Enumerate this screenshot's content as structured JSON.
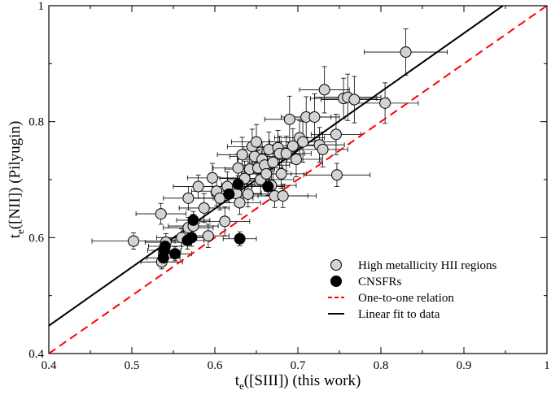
{
  "chart_data": {
    "type": "scatter",
    "title": "",
    "xlabel": {
      "prefix": "t",
      "sub": "e",
      "rest": "([SIII]) (this work)"
    },
    "ylabel": {
      "prefix": "t",
      "sub": "e",
      "rest": "([NII]) (Pilyugin)"
    },
    "xlim": [
      0.4,
      1.0
    ],
    "ylim": [
      0.4,
      1.0
    ],
    "x_ticks": [
      0.4,
      0.5,
      0.6,
      0.7,
      0.8,
      0.9,
      1.0
    ],
    "x_tick_labels": [
      "0.4",
      "0.5",
      "0.6",
      "0.7",
      "0.8",
      "0.9",
      "1"
    ],
    "y_ticks": [
      0.4,
      0.6,
      0.8,
      1.0
    ],
    "y_tick_labels": [
      "0.4",
      "0.6",
      "0.8",
      "1"
    ],
    "grid": false,
    "legend_position": "bottom-right",
    "series": [
      {
        "name": "High metallicity HII regions",
        "marker": "circle",
        "color": "#d3d3d3",
        "points": [
          [
            0.502,
            0.594,
            0.05,
            0.014
          ],
          [
            0.535,
            0.641,
            0.03,
            0.018
          ],
          [
            0.536,
            0.558,
            0.025,
            0.012
          ],
          [
            0.541,
            0.592,
            0.025,
            0.015
          ],
          [
            0.56,
            0.6,
            0.03,
            0.015
          ],
          [
            0.568,
            0.617,
            0.03,
            0.018
          ],
          [
            0.568,
            0.668,
            0.03,
            0.02
          ],
          [
            0.574,
            0.62,
            0.03,
            0.02
          ],
          [
            0.58,
            0.688,
            0.03,
            0.02
          ],
          [
            0.587,
            0.651,
            0.03,
            0.025
          ],
          [
            0.592,
            0.603,
            0.025,
            0.02
          ],
          [
            0.597,
            0.703,
            0.03,
            0.025
          ],
          [
            0.602,
            0.68,
            0.03,
            0.025
          ],
          [
            0.606,
            0.668,
            0.04,
            0.02
          ],
          [
            0.612,
            0.628,
            0.03,
            0.025
          ],
          [
            0.615,
            0.688,
            0.03,
            0.025
          ],
          [
            0.626,
            0.676,
            0.03,
            0.02
          ],
          [
            0.628,
            0.72,
            0.03,
            0.025
          ],
          [
            0.63,
            0.66,
            0.025,
            0.02
          ],
          [
            0.633,
            0.743,
            0.03,
            0.03
          ],
          [
            0.636,
            0.702,
            0.03,
            0.03
          ],
          [
            0.64,
            0.675,
            0.04,
            0.022
          ],
          [
            0.642,
            0.718,
            0.03,
            0.02
          ],
          [
            0.645,
            0.757,
            0.03,
            0.03
          ],
          [
            0.648,
            0.74,
            0.03,
            0.03
          ],
          [
            0.65,
            0.765,
            0.03,
            0.03
          ],
          [
            0.652,
            0.72,
            0.03,
            0.03
          ],
          [
            0.655,
            0.7,
            0.04,
            0.025
          ],
          [
            0.657,
            0.735,
            0.03,
            0.03
          ],
          [
            0.66,
            0.725,
            0.03,
            0.03
          ],
          [
            0.662,
            0.71,
            0.03,
            0.03
          ],
          [
            0.665,
            0.752,
            0.03,
            0.03
          ],
          [
            0.668,
            0.69,
            0.03,
            0.025
          ],
          [
            0.67,
            0.73,
            0.03,
            0.03
          ],
          [
            0.672,
            0.672,
            0.05,
            0.02
          ],
          [
            0.676,
            0.755,
            0.03,
            0.03
          ],
          [
            0.678,
            0.745,
            0.03,
            0.03
          ],
          [
            0.68,
            0.71,
            0.03,
            0.025
          ],
          [
            0.682,
            0.672,
            0.03,
            0.02
          ],
          [
            0.686,
            0.745,
            0.03,
            0.03
          ],
          [
            0.69,
            0.804,
            0.03,
            0.04
          ],
          [
            0.694,
            0.758,
            0.03,
            0.03
          ],
          [
            0.698,
            0.735,
            0.03,
            0.03
          ],
          [
            0.702,
            0.772,
            0.03,
            0.03
          ],
          [
            0.706,
            0.765,
            0.04,
            0.035
          ],
          [
            0.71,
            0.808,
            0.03,
            0.035
          ],
          [
            0.72,
            0.808,
            0.03,
            0.04
          ],
          [
            0.726,
            0.76,
            0.03,
            0.03
          ],
          [
            0.73,
            0.752,
            0.03,
            0.03
          ],
          [
            0.732,
            0.855,
            0.03,
            0.04
          ],
          [
            0.746,
            0.778,
            0.03,
            0.035
          ],
          [
            0.747,
            0.708,
            0.04,
            0.02
          ],
          [
            0.755,
            0.84,
            0.04,
            0.035
          ],
          [
            0.76,
            0.842,
            0.04,
            0.04
          ],
          [
            0.768,
            0.838,
            0.04,
            0.04
          ],
          [
            0.805,
            0.832,
            0.04,
            0.035
          ],
          [
            0.83,
            0.92,
            0.05,
            0.04
          ]
        ]
      },
      {
        "name": "CNSFRs",
        "marker": "circle",
        "color": "#000000",
        "points": [
          [
            0.538,
            0.565,
            0.02,
            0.012
          ],
          [
            0.539,
            0.578,
            0.02,
            0.012
          ],
          [
            0.54,
            0.585,
            0.02,
            0.012
          ],
          [
            0.552,
            0.572,
            0.02,
            0.012
          ],
          [
            0.567,
            0.595,
            0.02,
            0.015
          ],
          [
            0.572,
            0.6,
            0.02,
            0.015
          ],
          [
            0.574,
            0.63,
            0.02,
            0.015
          ],
          [
            0.617,
            0.675,
            0.02,
            0.015
          ],
          [
            0.628,
            0.692,
            0.02,
            0.015
          ],
          [
            0.63,
            0.598,
            0.02,
            0.012
          ],
          [
            0.664,
            0.688,
            0.02,
            0.015
          ]
        ]
      }
    ],
    "lines": [
      {
        "name": "One-to-one relation",
        "style": "dashed",
        "color": "#ff0000",
        "x": [
          0.4,
          1.0
        ],
        "y": [
          0.4,
          1.0
        ]
      },
      {
        "name": "Linear fit to data",
        "style": "solid",
        "color": "#000000",
        "x": [
          0.4,
          0.947
        ],
        "y": [
          0.448,
          1.0
        ]
      }
    ],
    "legend": [
      {
        "label": "High metallicity HII regions",
        "kind": "marker-open"
      },
      {
        "label": "CNSFRs",
        "kind": "marker-filled"
      },
      {
        "label": "One-to-one relation",
        "kind": "line-dashed"
      },
      {
        "label": "Linear fit to data",
        "kind": "line-solid"
      }
    ]
  }
}
